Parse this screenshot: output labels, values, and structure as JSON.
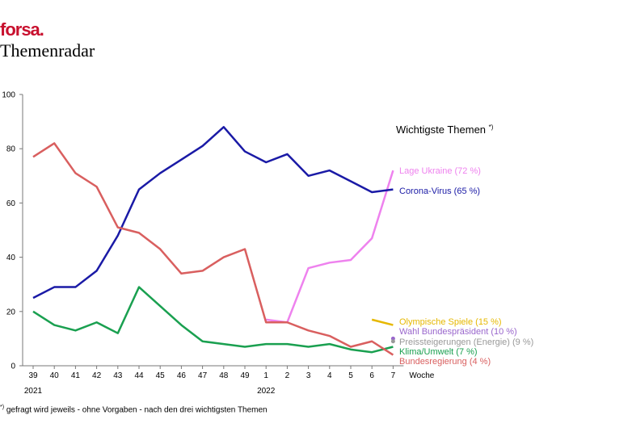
{
  "header": {
    "brand": "forsa.",
    "title": "Themenradar"
  },
  "footnote": {
    "mark": "*)",
    "text": "gefragt wird jeweils - ohne Vorgaben - nach den drei wichtigsten Themen"
  },
  "chart_data": {
    "type": "line",
    "title": "Wichtigste Themen *)",
    "xlabel": "Woche",
    "ylabel": "",
    "ylim": [
      0,
      100
    ],
    "yticks": [
      0,
      20,
      40,
      60,
      80,
      100
    ],
    "categories": [
      "39",
      "40",
      "41",
      "42",
      "43",
      "44",
      "45",
      "46",
      "47",
      "48",
      "49",
      "1",
      "2",
      "3",
      "4",
      "5",
      "6",
      "7"
    ],
    "year_labels": [
      {
        "label": "2021",
        "at_index": 0
      },
      {
        "label": "2022",
        "at_index": 11
      }
    ],
    "series": [
      {
        "name": "Lage Ukraine (72 %)",
        "color": "#ee82ee",
        "values": [
          null,
          null,
          null,
          null,
          null,
          null,
          null,
          null,
          null,
          null,
          null,
          17,
          16,
          36,
          38,
          39,
          47,
          72
        ]
      },
      {
        "name": "Corona-Virus (65 %)",
        "color": "#1a1aa6",
        "values": [
          25,
          29,
          29,
          35,
          48,
          65,
          71,
          76,
          81,
          88,
          79,
          75,
          78,
          70,
          72,
          68,
          64,
          65
        ]
      },
      {
        "name": "Olympische Spiele (15 %)",
        "color": "#e6b800",
        "values": [
          null,
          null,
          null,
          null,
          null,
          null,
          null,
          null,
          null,
          null,
          null,
          null,
          null,
          null,
          null,
          null,
          17,
          15
        ]
      },
      {
        "name": "Wahl Bundespräsident (10 %)",
        "color": "#9966cc",
        "values": [
          null,
          null,
          null,
          null,
          null,
          null,
          null,
          null,
          null,
          null,
          null,
          null,
          null,
          null,
          null,
          null,
          null,
          10
        ]
      },
      {
        "name": "Preissteigerungen (Energie) (9 %)",
        "color": "#999999",
        "values": [
          null,
          null,
          null,
          null,
          null,
          null,
          null,
          null,
          null,
          null,
          null,
          null,
          null,
          null,
          null,
          null,
          null,
          9
        ]
      },
      {
        "name": "Klima/Umwelt (7 %)",
        "color": "#1aa050",
        "values": [
          20,
          15,
          13,
          16,
          12,
          29,
          22,
          15,
          9,
          8,
          7,
          8,
          8,
          7,
          8,
          6,
          5,
          7
        ]
      },
      {
        "name": "Bundesregierung (4 %)",
        "color": "#d95f5f",
        "values": [
          77,
          82,
          71,
          66,
          51,
          49,
          43,
          34,
          35,
          40,
          43,
          16,
          16,
          13,
          11,
          7,
          9,
          4
        ]
      }
    ]
  }
}
